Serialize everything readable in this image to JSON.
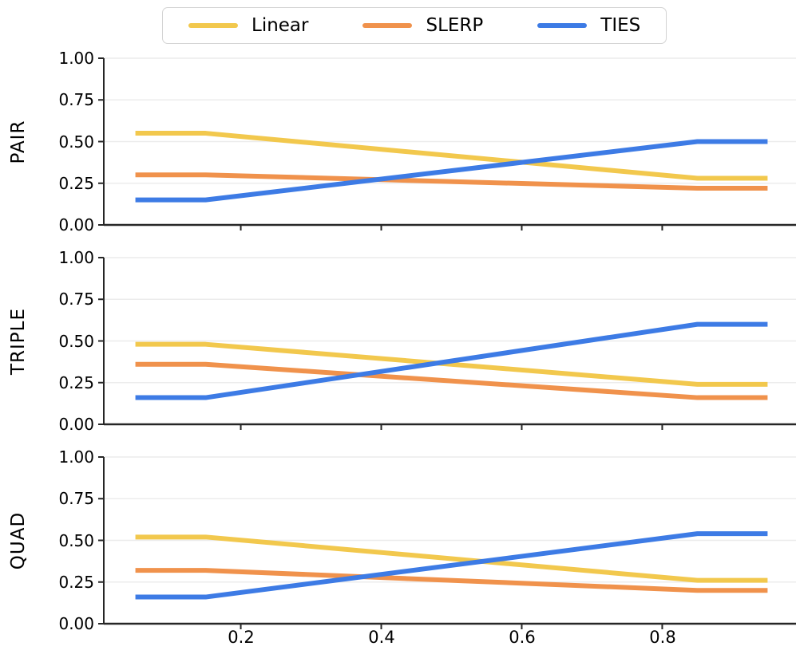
{
  "legend": {
    "items": [
      {
        "label": "Linear",
        "color": "#F2C84D"
      },
      {
        "label": "SLERP",
        "color": "#F0924C"
      },
      {
        "label": "TIES",
        "color": "#3D7BE5"
      }
    ]
  },
  "axes": {
    "x_ticks": [
      "0.2",
      "0.4",
      "0.6",
      "0.8"
    ],
    "y_ticks": [
      "1.00",
      "0.75",
      "0.50",
      "0.25",
      "0.00"
    ],
    "grid_color": "#ececec",
    "spine_color": "#262626"
  },
  "chart_data": [
    {
      "type": "line",
      "ylabel": "PAIR",
      "x": [
        0.05,
        0.15,
        0.85,
        0.95
      ],
      "series": [
        {
          "name": "Linear",
          "color": "#F2C84D",
          "values": [
            0.55,
            0.55,
            0.28,
            0.28
          ]
        },
        {
          "name": "SLERP",
          "color": "#F0924C",
          "values": [
            0.3,
            0.3,
            0.22,
            0.22
          ]
        },
        {
          "name": "TIES",
          "color": "#3D7BE5",
          "values": [
            0.15,
            0.15,
            0.5,
            0.5
          ]
        }
      ],
      "xlim": [
        0.005,
        0.995
      ],
      "ylim": [
        0,
        1
      ],
      "x_tick_values": [
        0.2,
        0.4,
        0.6,
        0.8
      ],
      "y_tick_values": [
        1.0,
        0.75,
        0.5,
        0.25,
        0.0
      ],
      "grid": "horizontal",
      "legend_position": "top-center-above-first-subplot"
    },
    {
      "type": "line",
      "ylabel": "TRIPLE",
      "x": [
        0.05,
        0.15,
        0.85,
        0.95
      ],
      "series": [
        {
          "name": "Linear",
          "color": "#F2C84D",
          "values": [
            0.48,
            0.48,
            0.24,
            0.24
          ]
        },
        {
          "name": "SLERP",
          "color": "#F0924C",
          "values": [
            0.36,
            0.36,
            0.16,
            0.16
          ]
        },
        {
          "name": "TIES",
          "color": "#3D7BE5",
          "values": [
            0.16,
            0.16,
            0.6,
            0.6
          ]
        }
      ],
      "xlim": [
        0.005,
        0.995
      ],
      "ylim": [
        0,
        1
      ],
      "x_tick_values": [
        0.2,
        0.4,
        0.6,
        0.8
      ],
      "y_tick_values": [
        1.0,
        0.75,
        0.5,
        0.25,
        0.0
      ],
      "grid": "horizontal"
    },
    {
      "type": "line",
      "ylabel": "QUAD",
      "x": [
        0.05,
        0.15,
        0.85,
        0.95
      ],
      "series": [
        {
          "name": "Linear",
          "color": "#F2C84D",
          "values": [
            0.52,
            0.52,
            0.26,
            0.26
          ]
        },
        {
          "name": "SLERP",
          "color": "#F0924C",
          "values": [
            0.32,
            0.32,
            0.2,
            0.2
          ]
        },
        {
          "name": "TIES",
          "color": "#3D7BE5",
          "values": [
            0.16,
            0.16,
            0.54,
            0.54
          ]
        }
      ],
      "xlim": [
        0.005,
        0.995
      ],
      "ylim": [
        0,
        1
      ],
      "x_tick_values": [
        0.2,
        0.4,
        0.6,
        0.8
      ],
      "y_tick_values": [
        1.0,
        0.75,
        0.5,
        0.25,
        0.0
      ],
      "grid": "horizontal"
    }
  ]
}
